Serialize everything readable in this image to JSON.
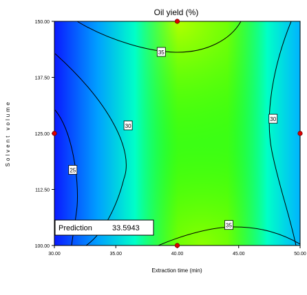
{
  "chart_data": {
    "type": "heatmap",
    "subtype": "contour",
    "title": "Oil yield (%)",
    "xlabel": "Extraction time (min)",
    "ylabel": "Solvent volume",
    "xlim": [
      30,
      50
    ],
    "ylim": [
      100,
      150
    ],
    "x_ticks": [
      "30.00",
      "35.00",
      "40.00",
      "45.00",
      "50.00"
    ],
    "y_ticks": [
      "100.00",
      "112.50",
      "125.00",
      "137.50",
      "150.00"
    ],
    "grid": false,
    "colormap": [
      "#0000ff",
      "#00ffff",
      "#00ff00"
    ],
    "contour_levels": [
      25,
      30,
      35
    ],
    "contour_labels": [
      {
        "text": "35",
        "x": 38.7,
        "y": 143.1
      },
      {
        "text": "30",
        "x": 36.0,
        "y": 126.7
      },
      {
        "text": "25",
        "x": 31.5,
        "y": 116.8
      },
      {
        "text": "30",
        "x": 47.8,
        "y": 128.2
      },
      {
        "text": "35",
        "x": 44.2,
        "y": 104.5
      }
    ],
    "design_points": [
      {
        "x": 40,
        "y": 150
      },
      {
        "x": 30,
        "y": 125
      },
      {
        "x": 50,
        "y": 125
      },
      {
        "x": 40,
        "y": 100
      }
    ],
    "design_point_color": "#e00000",
    "prediction": {
      "label": "Prediction",
      "value": "33.5943"
    }
  }
}
